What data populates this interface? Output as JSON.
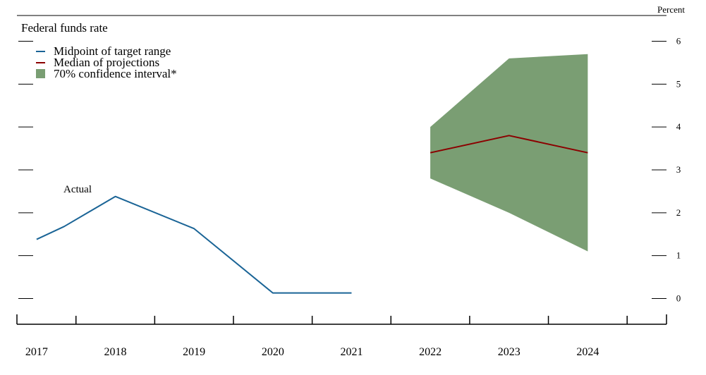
{
  "chart_data": {
    "type": "line",
    "title": "Federal funds rate",
    "unit_label": "Percent",
    "ylim": [
      -0.6,
      6.6
    ],
    "y_ticks": [
      0,
      1,
      2,
      3,
      4,
      5,
      6
    ],
    "xlim": [
      2016.75,
      2025.0
    ],
    "x_ticks": [
      2017,
      2018,
      2019,
      2020,
      2021,
      2022,
      2023,
      2024
    ],
    "grid": false,
    "legend_position": "top-left",
    "annotation": "Actual",
    "series": [
      {
        "name": "Midpoint of target range",
        "kind": "line",
        "color": "#1a6496",
        "points": [
          {
            "x": 2017.0,
            "y": 1.38
          },
          {
            "x": 2017.35,
            "y": 1.68
          },
          {
            "x": 2018.0,
            "y": 2.38
          },
          {
            "x": 2019.0,
            "y": 1.63
          },
          {
            "x": 2020.0,
            "y": 0.13
          },
          {
            "x": 2021.0,
            "y": 0.13
          }
        ]
      },
      {
        "name": "Median of projections",
        "kind": "line",
        "color": "#8b0000",
        "points": [
          {
            "x": 2022.0,
            "y": 3.4
          },
          {
            "x": 2023.0,
            "y": 3.8
          },
          {
            "x": 2024.0,
            "y": 3.4
          }
        ]
      },
      {
        "name": "70% confidence interval*",
        "kind": "band",
        "color": "#7a9e73",
        "points": [
          {
            "x": 2022.0,
            "low": 2.8,
            "high": 4.0
          },
          {
            "x": 2023.0,
            "low": 2.0,
            "high": 5.6
          },
          {
            "x": 2024.0,
            "low": 1.1,
            "high": 5.7
          }
        ]
      }
    ]
  }
}
